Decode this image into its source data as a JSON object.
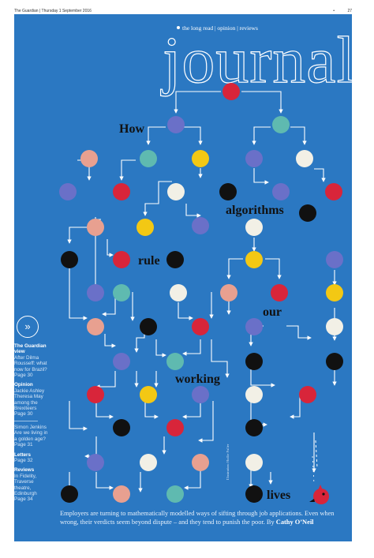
{
  "masthead": {
    "paper_line": "The Guardian | Thursday 1 September 2016",
    "page_number": "27",
    "sections": "the long read | opinion | reviews",
    "title": "journal"
  },
  "headline": {
    "word1": "How",
    "word2": "algorithms",
    "word3": "rule",
    "word4": "our",
    "word5": "working",
    "word6": "lives"
  },
  "sidebar": {
    "guardian_view_head": "The Guardian view",
    "guardian_view_text": "After Dilma Rousseff: what now for Brazil? Page 30",
    "opinion_head": "Opinion",
    "opinion_item1": "Jackie Ashley Theresa May among the Brexiteers Page 30",
    "opinion_item2": "Simon Jenkins Are we living in a golden age? Page 31",
    "letters_head": "Letters",
    "letters_text": "Page 32",
    "reviews_head": "Reviews",
    "reviews_text": "In Fidelity, Traverse theatre, Edinburgh Page 34"
  },
  "credit": "Illustration: Hollie Fuller",
  "standfirst": {
    "text": "Employers are turning to mathematically modelled ways of sifting through job applications. Even when wrong, their verdicts seem beyond dispute – and they tend to punish the poor. By ",
    "byline": "Cathy O’Neil"
  },
  "colors": {
    "background": "#2b78c2",
    "red": "#d8253a",
    "black": "#111111",
    "pink": "#e8a090",
    "teal": "#5fbab0",
    "yellow": "#f3c814",
    "white": "#f2f0e6",
    "purple": "#6a70c8"
  }
}
